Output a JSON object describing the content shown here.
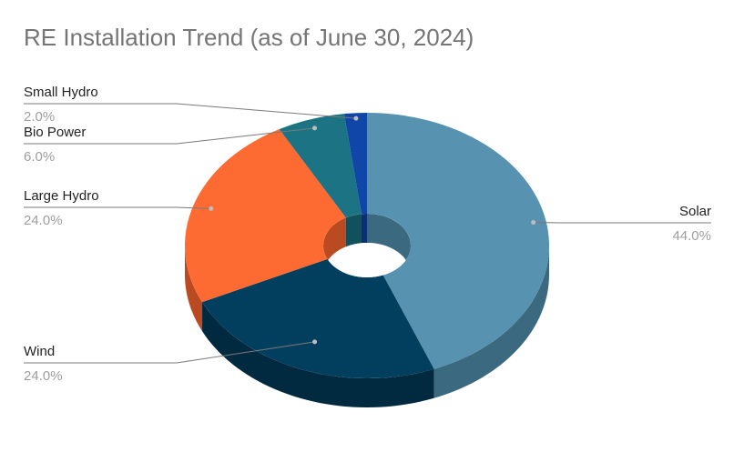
{
  "chart_data": {
    "type": "pie",
    "style": "3d-donut",
    "title": "RE Installation Trend (as of June 30, 2024)",
    "slices": [
      {
        "label": "Solar",
        "value": 44.0,
        "value_label": "44.0%",
        "color": "#5793b0",
        "side_color": "#3b6a80",
        "label_side": "right"
      },
      {
        "label": "Wind",
        "value": 24.0,
        "value_label": "24.0%",
        "color": "#023f5f",
        "side_color": "#012a40",
        "label_side": "left"
      },
      {
        "label": "Large Hydro",
        "value": 24.0,
        "value_label": "24.0%",
        "color": "#fe6b32",
        "side_color": "#b94a21",
        "label_side": "left"
      },
      {
        "label": "Bio Power",
        "value": 6.0,
        "value_label": "6.0%",
        "color": "#1b7383",
        "side_color": "#12505c",
        "label_side": "left"
      },
      {
        "label": "Small Hydro",
        "value": 2.0,
        "value_label": "2.0%",
        "color": "#0f46a8",
        "side_color": "#0a3075",
        "label_side": "left"
      }
    ]
  }
}
